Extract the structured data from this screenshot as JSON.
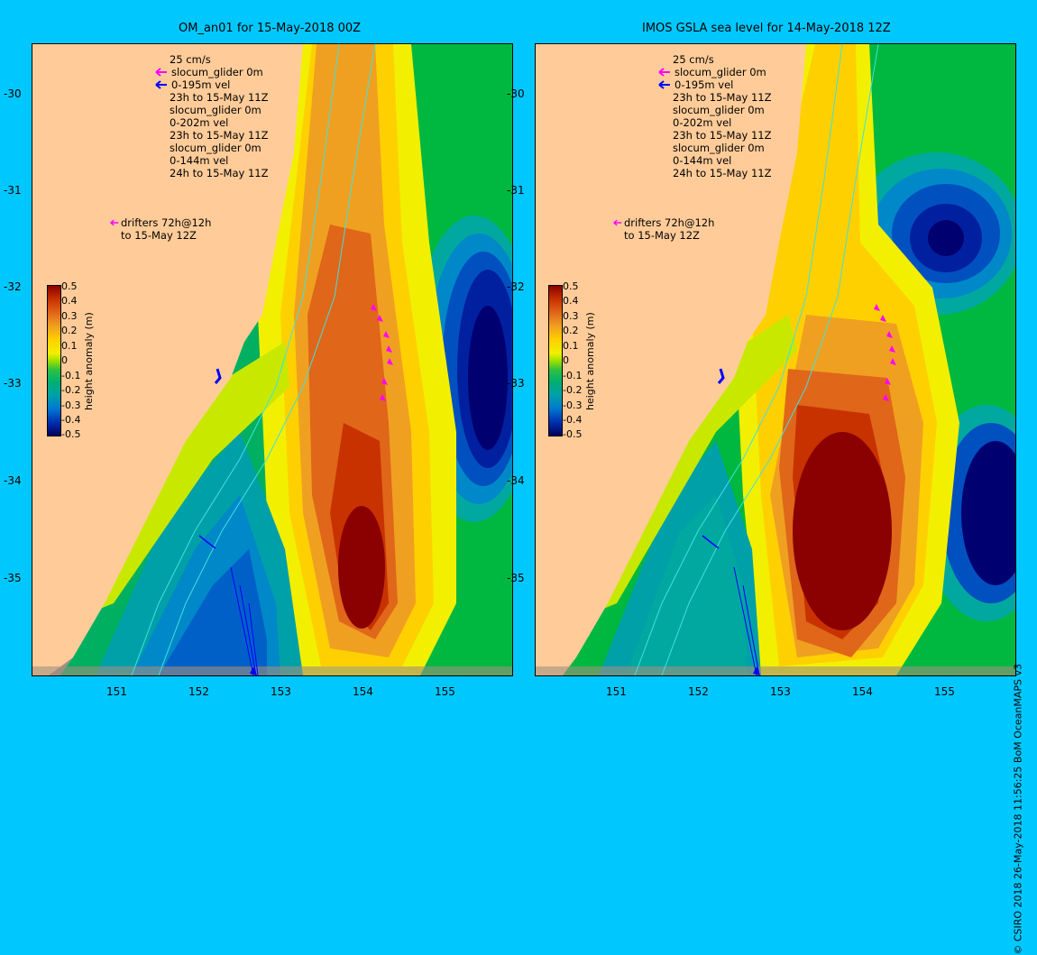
{
  "panels": [
    {
      "title": "OM_an01 for 15-May-2018 00Z",
      "legend": {
        "scale": "25 cm/s",
        "lines": [
          "slocum_glider 0m",
          "0-195m vel",
          "23h to 15-May 11Z",
          "slocum_glider 0m",
          "0-202m vel",
          "23h to 15-May 11Z",
          "slocum_glider 0m",
          "0-144m vel",
          "24h to 15-May 11Z"
        ],
        "drifters": [
          "drifters 72h@12h",
          "to 15-May 12Z"
        ]
      },
      "colorbar": {
        "label": "height anomaly (m)",
        "ticks": [
          "0.5",
          "0.4",
          "0.3",
          "0.2",
          "0.1",
          "0",
          "-0.1",
          "-0.2",
          "-0.3",
          "-0.4",
          "-0.5"
        ]
      }
    },
    {
      "title": "IMOS GSLA sea level  for 14-May-2018 12Z",
      "legend": {
        "scale": "25 cm/s",
        "lines": [
          "slocum_glider 0m",
          "0-195m vel",
          "23h to 15-May 11Z",
          "slocum_glider 0m",
          "0-202m vel",
          "23h to 15-May 11Z",
          "slocum_glider 0m",
          "0-144m vel",
          "24h to 15-May 11Z"
        ],
        "drifters": [
          "drifters 72h@12h",
          "to 15-May 12Z"
        ]
      },
      "colorbar": {
        "label": "height anomaly (m)",
        "ticks": [
          "0.5",
          "0.4",
          "0.3",
          "0.2",
          "0.1",
          "0",
          "-0.1",
          "-0.2",
          "-0.3",
          "-0.4",
          "-0.5"
        ]
      }
    }
  ],
  "axes": {
    "lat_ticks": [
      "-30",
      "-31",
      "-32",
      "-33",
      "-34",
      "-35"
    ],
    "lon_ticks": [
      "151",
      "152",
      "153",
      "154",
      "155"
    ]
  },
  "credit": "© CSIRO 2018  26-May-2018 11:56:25 BoM OceanMAPS v3",
  "colors": {
    "land": "#ffcc99",
    "background": "#00c8ff",
    "drifter_arrow": "#ff00ff",
    "glider_arrow": "#0000ff"
  }
}
